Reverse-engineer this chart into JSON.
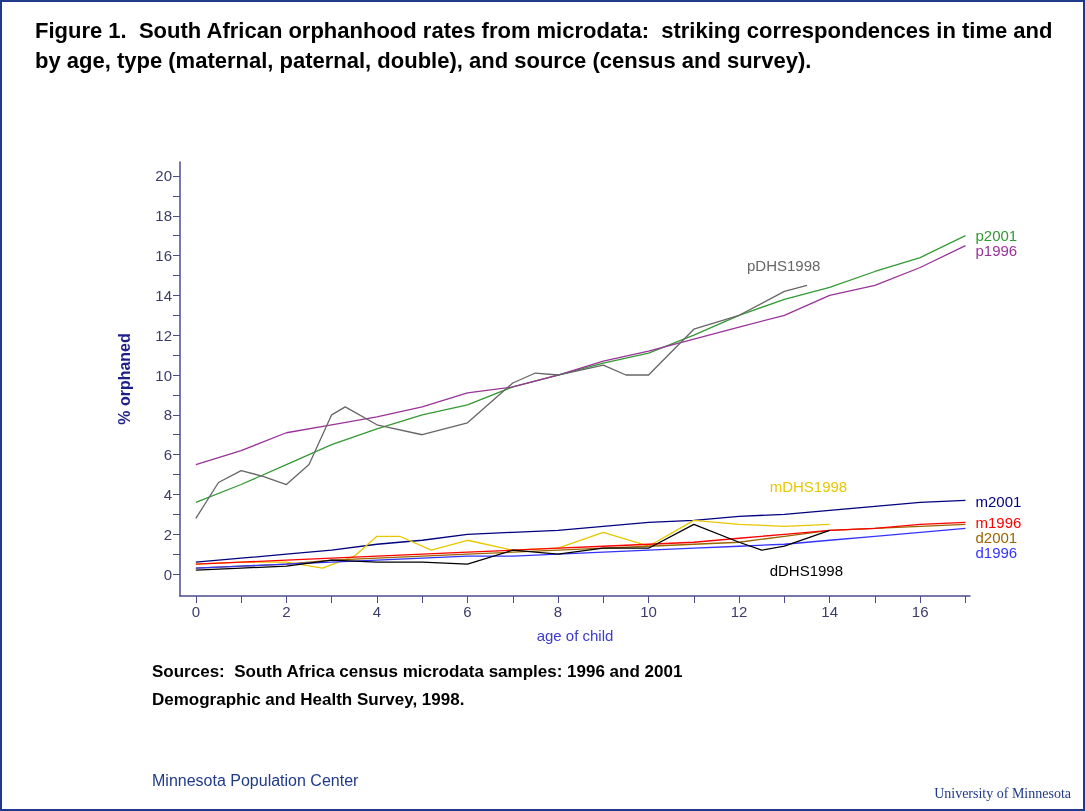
{
  "chart_data": {
    "type": "line",
    "title": "Figure 1.  South African orphanhood rates from microdata:  striking correspondences in time and by age, type (maternal, paternal, double), and source (census and survey).",
    "xlabel": "age of child",
    "ylabel": "% orphaned",
    "xlim": [
      -0.35,
      17.1
    ],
    "xticks": [
      0,
      {
        "value": 1,
        "label": null
      },
      2,
      {
        "value": 3,
        "label": null
      },
      4,
      {
        "value": 5,
        "label": null
      },
      6,
      {
        "value": 7,
        "label": null
      },
      8,
      {
        "value": 9,
        "label": null
      },
      10,
      {
        "value": 11,
        "label": null
      },
      12,
      {
        "value": 13,
        "label": null
      },
      14,
      {
        "value": 15,
        "label": null
      },
      16,
      {
        "value": 17,
        "label": null
      }
    ],
    "ylim": [
      -1.1,
      20.7
    ],
    "yticks": [
      0,
      {
        "value": 1,
        "label": null
      },
      2,
      {
        "value": 3,
        "label": null
      },
      4,
      {
        "value": 5,
        "label": null
      },
      6,
      {
        "value": 7,
        "label": null
      },
      8,
      {
        "value": 9,
        "label": null
      },
      10,
      {
        "value": 11,
        "label": null
      },
      12,
      {
        "value": 13,
        "label": null
      },
      14,
      {
        "value": 15,
        "label": null
      },
      16,
      {
        "value": 17,
        "label": null
      },
      18,
      {
        "value": 19,
        "label": null
      },
      20
    ],
    "grid": false,
    "legend": false,
    "marker": "none",
    "line_style": "solid",
    "x": [
      0,
      1,
      2,
      3,
      4,
      5,
      6,
      7,
      8,
      9,
      10,
      11,
      12,
      13,
      14,
      15,
      16,
      17
    ],
    "series": [
      {
        "name": "p2001",
        "color": "#339933",
        "values": [
          3.6,
          4.5,
          5.5,
          6.5,
          7.3,
          8.0,
          8.5,
          9.4,
          10.0,
          10.6,
          11.1,
          12.0,
          13.0,
          13.8,
          14.4,
          15.2,
          15.9,
          17.0
        ]
      },
      {
        "name": "p1996",
        "color": "#993399",
        "values": [
          5.5,
          6.2,
          7.1,
          7.5,
          7.9,
          8.4,
          9.1,
          9.4,
          10.0,
          10.7,
          11.2,
          11.8,
          12.4,
          13.0,
          14.0,
          14.5,
          15.4,
          16.5
        ]
      },
      {
        "name": "pDHS1998",
        "color": "#666666",
        "x": [
          0,
          0.5,
          1,
          1.5,
          2,
          2.5,
          3,
          3.3,
          4,
          5,
          6,
          7,
          7.5,
          8,
          9,
          9.5,
          10,
          11,
          12,
          13,
          13.5
        ],
        "values": [
          2.8,
          4.6,
          5.2,
          4.9,
          4.5,
          5.5,
          8.0,
          8.4,
          7.5,
          7.0,
          7.6,
          9.6,
          10.1,
          10.0,
          10.5,
          10.0,
          10.0,
          12.3,
          13.0,
          14.2,
          14.5
        ]
      },
      {
        "name": "m2001",
        "color": "#000080",
        "values": [
          0.6,
          0.8,
          1.0,
          1.2,
          1.5,
          1.7,
          2.0,
          2.1,
          2.2,
          2.4,
          2.6,
          2.7,
          2.9,
          3.0,
          3.2,
          3.4,
          3.6,
          3.7
        ]
      },
      {
        "name": "mDHS1998",
        "color": "#e6c700",
        "x": [
          0,
          1,
          2,
          2.8,
          3.5,
          4,
          4.5,
          5.2,
          6,
          7,
          8,
          9,
          10,
          11,
          12,
          13,
          14
        ],
        "values": [
          0.5,
          0.6,
          0.6,
          0.3,
          0.9,
          1.9,
          1.9,
          1.2,
          1.7,
          1.2,
          1.3,
          2.1,
          1.4,
          2.7,
          2.5,
          2.4,
          2.5
        ]
      },
      {
        "name": "d2001",
        "color": "#996600",
        "values": [
          0.3,
          0.4,
          0.5,
          0.7,
          0.8,
          0.9,
          1.0,
          1.1,
          1.2,
          1.3,
          1.4,
          1.5,
          1.6,
          1.9,
          2.2,
          2.3,
          2.4,
          2.5
        ]
      },
      {
        "name": "m1996",
        "color": "#ff0000",
        "values": [
          0.5,
          0.6,
          0.7,
          0.8,
          0.9,
          1.0,
          1.1,
          1.2,
          1.3,
          1.4,
          1.5,
          1.6,
          1.8,
          2.0,
          2.2,
          2.3,
          2.5,
          2.6
        ]
      },
      {
        "name": "d1996",
        "color": "#3333ff",
        "values": [
          0.3,
          0.4,
          0.5,
          0.6,
          0.7,
          0.8,
          0.9,
          0.9,
          1.0,
          1.1,
          1.2,
          1.3,
          1.4,
          1.5,
          1.7,
          1.9,
          2.1,
          2.3
        ]
      },
      {
        "name": "dDHS1998",
        "color": "#000000",
        "x": [
          0,
          1,
          2,
          3,
          4,
          5,
          6,
          7,
          8,
          9,
          10,
          11,
          12,
          12.5,
          13,
          14
        ],
        "values": [
          0.2,
          0.3,
          0.4,
          0.7,
          0.6,
          0.6,
          0.5,
          1.2,
          1.0,
          1.3,
          1.3,
          2.5,
          1.6,
          1.2,
          1.4,
          2.2
        ]
      }
    ],
    "annotations": [
      "Sources:  South Africa census microdata samples: 1996 and 2001\nDemographic and Health Survey, 1998.",
      "Minnesota Population Center",
      "University of Minnesota"
    ]
  }
}
